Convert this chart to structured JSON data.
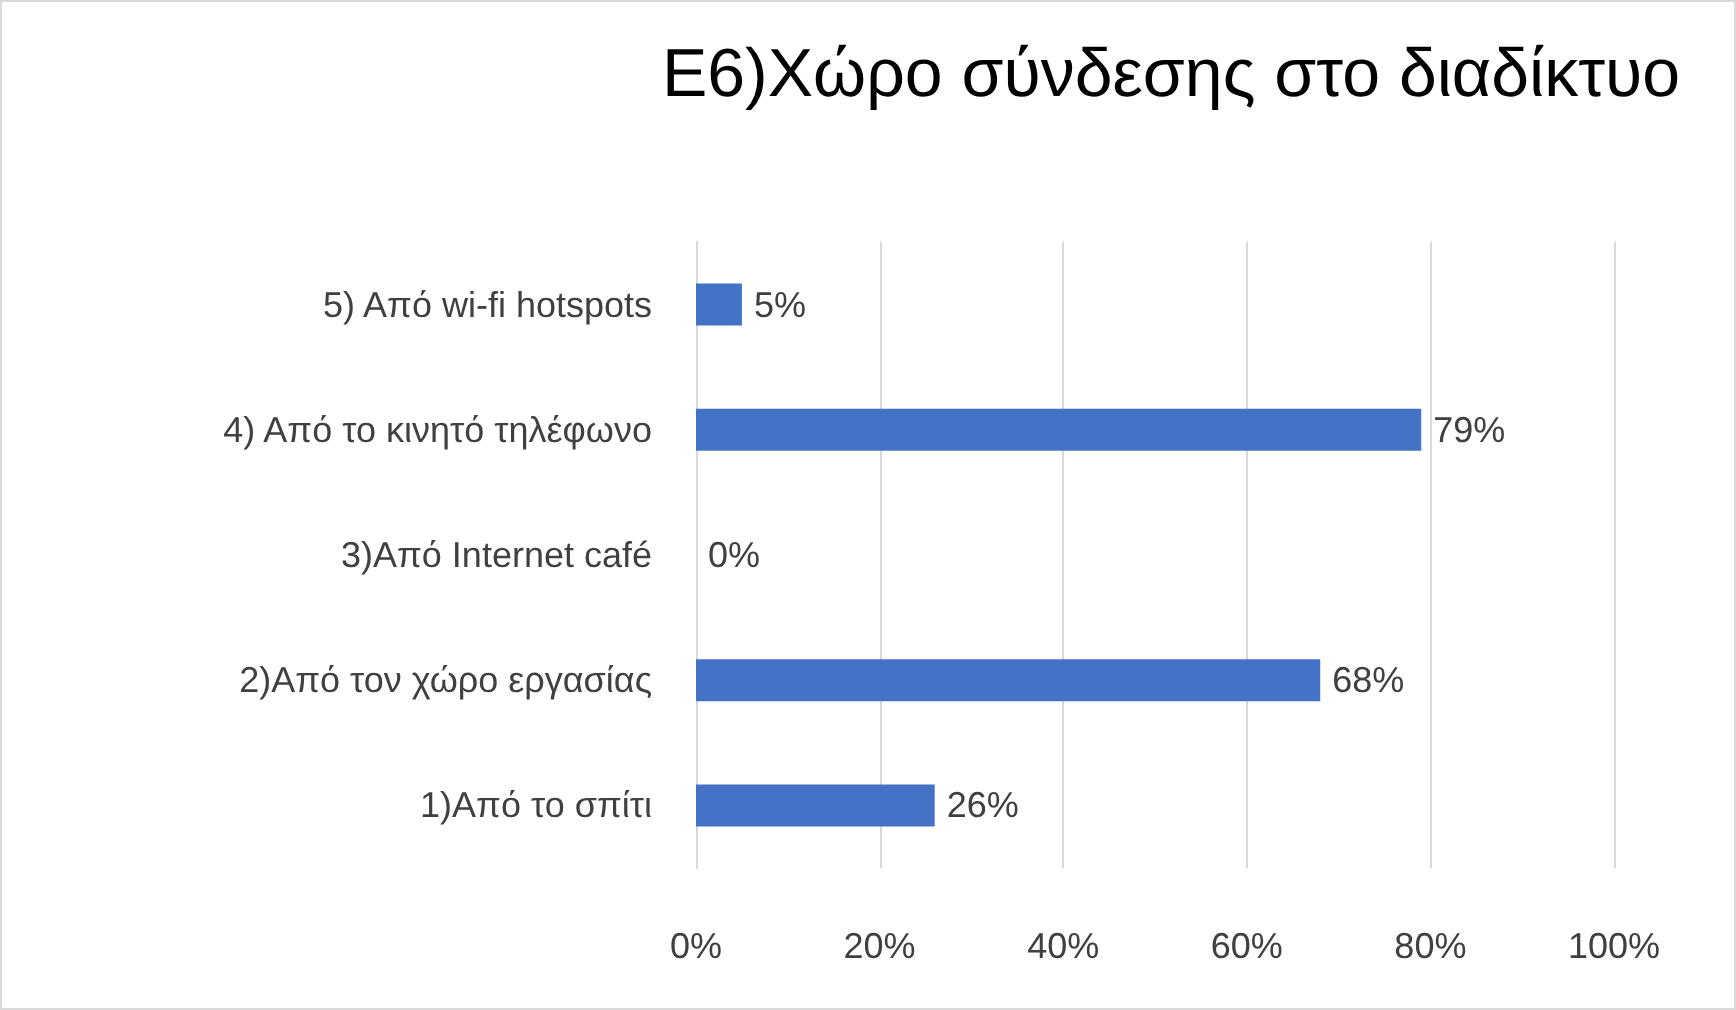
{
  "chart_data": {
    "type": "bar",
    "orientation": "horizontal",
    "title": "Ε6)Χώρο σύνδεσης στο διαδίκτυο",
    "categories": [
      "5) Από wi-fi hotspots",
      "4) Από το κινητό τηλέφωνο",
      "3)Από Internet café",
      "2)Από τον χώρο εργασίας",
      "1)Από το σπίτι"
    ],
    "values": [
      5,
      79,
      0,
      68,
      26
    ],
    "value_labels": [
      "5%",
      "79%",
      "0%",
      "68%",
      "26%"
    ],
    "color": "#4472c4",
    "xlim": [
      0,
      100
    ],
    "xticks": [
      {
        "value": 0,
        "label": "0%"
      },
      {
        "value": 20,
        "label": "20%"
      },
      {
        "value": 40,
        "label": "40%"
      },
      {
        "value": 60,
        "label": "60%"
      },
      {
        "value": 80,
        "label": "80%"
      },
      {
        "value": 100,
        "label": "100%"
      }
    ],
    "grid": "x"
  }
}
